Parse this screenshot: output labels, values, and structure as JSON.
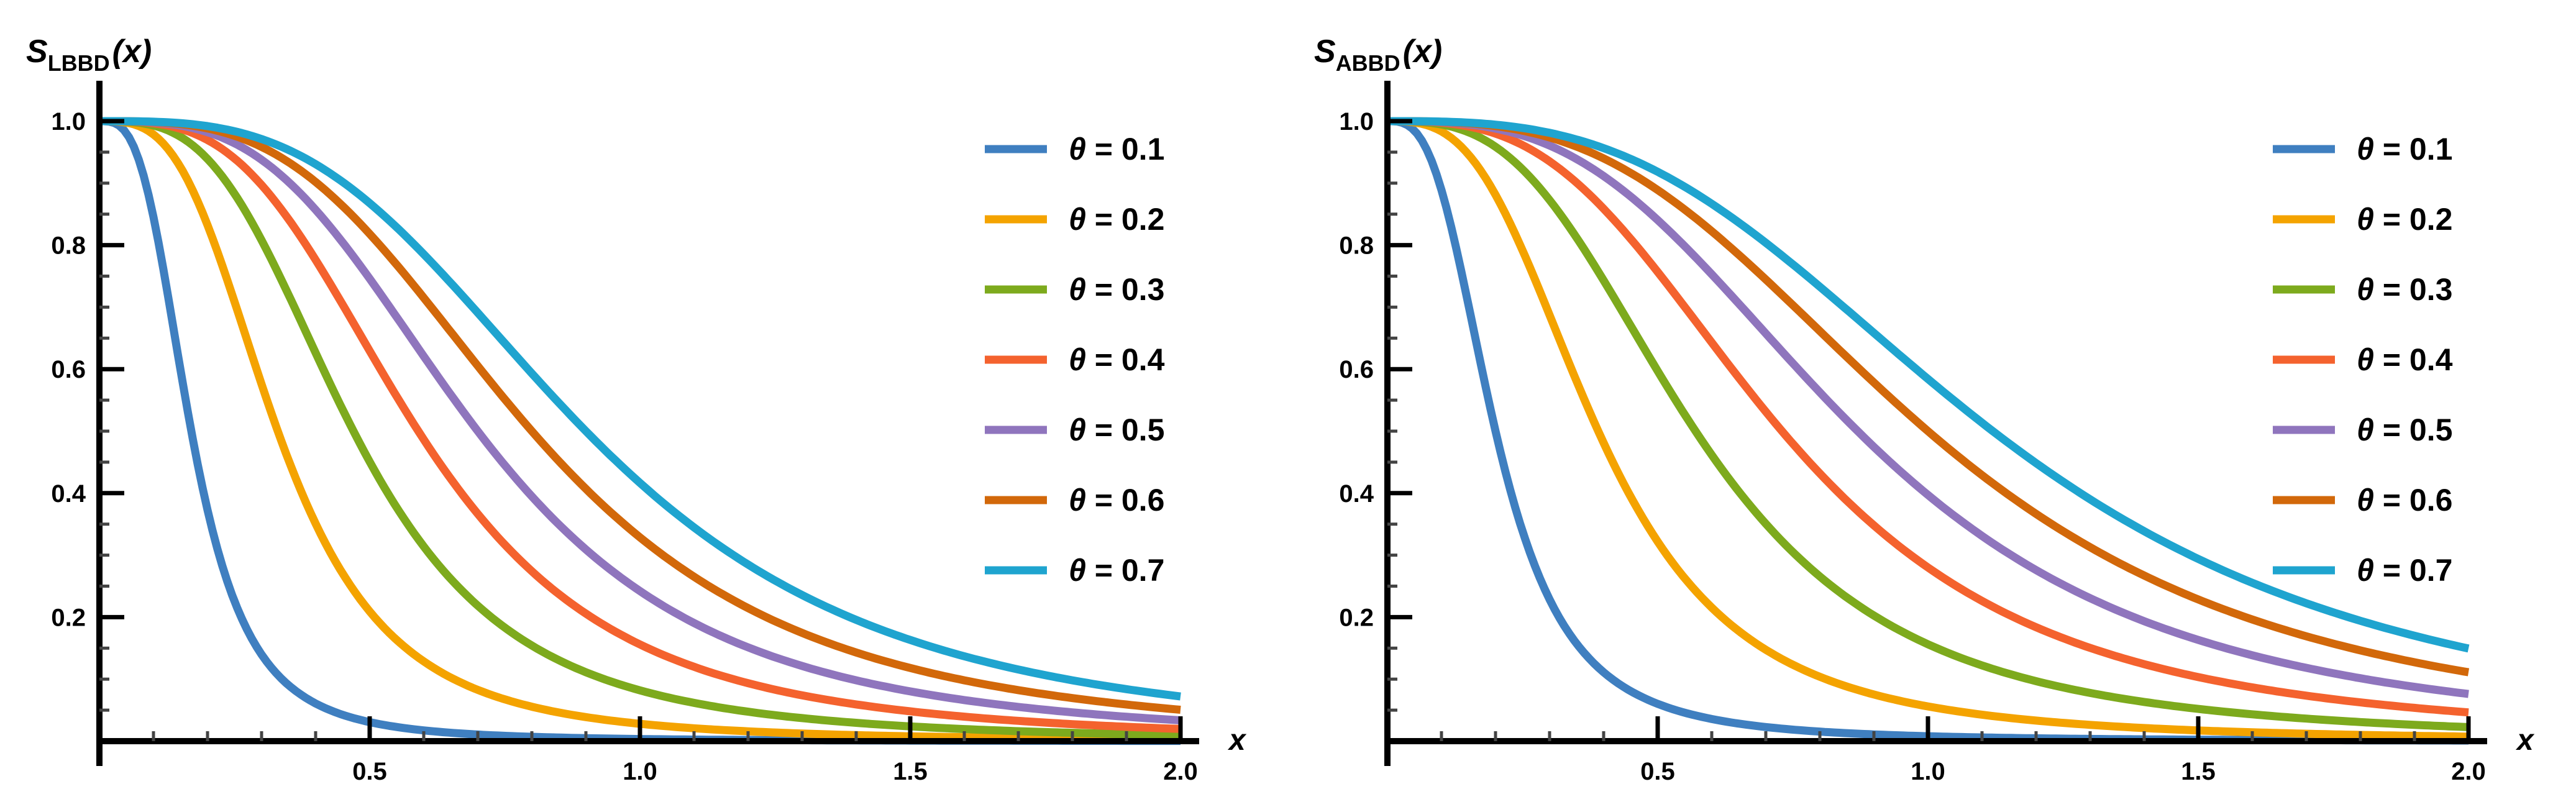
{
  "chart_data": [
    {
      "type": "line",
      "title": "",
      "ylabel_main": "S",
      "ylabel_sub": "LBBD",
      "ylabel_arg": "(x)",
      "xlabel": "x",
      "xlim": [
        0,
        2.0
      ],
      "ylim": [
        0,
        1.0
      ],
      "xticks": [
        0.5,
        1.0,
        1.5,
        2.0
      ],
      "xtick_labels": [
        "0.5",
        "1.0",
        "1.5",
        "2.0"
      ],
      "yticks": [
        0.2,
        0.4,
        0.6,
        0.8,
        1.0
      ],
      "ytick_labels": [
        "0.2",
        "0.4",
        "0.6",
        "0.8",
        "1.0"
      ],
      "legend_position": "top-right",
      "curve_shape": 3.2,
      "series": [
        {
          "name": "θ = 0.1",
          "theta_label": "θ",
          "value_label": " = 0.1",
          "color": "#3f7fc0",
          "scale": 0.17
        },
        {
          "name": "θ = 0.2",
          "theta_label": "θ",
          "value_label": " = 0.2",
          "color": "#f4a300",
          "scale": 0.33
        },
        {
          "name": "θ = 0.3",
          "theta_label": "θ",
          "value_label": " = 0.3",
          "color": "#7daa1d",
          "scale": 0.47
        },
        {
          "name": "θ = 0.4",
          "theta_label": "θ",
          "value_label": " = 0.4",
          "color": "#f4622e",
          "scale": 0.59
        },
        {
          "name": "θ = 0.5",
          "theta_label": "θ",
          "value_label": " = 0.5",
          "color": "#8f75bd",
          "scale": 0.7
        },
        {
          "name": "θ = 0.6",
          "theta_label": "θ",
          "value_label": " = 0.6",
          "color": "#d2680a",
          "scale": 0.8
        },
        {
          "name": "θ = 0.7",
          "theta_label": "θ",
          "value_label": " = 0.7",
          "color": "#1fa4cf",
          "scale": 0.9
        }
      ]
    },
    {
      "type": "line",
      "title": "",
      "ylabel_main": "S",
      "ylabel_sub": "ABBD",
      "ylabel_arg": "(x)",
      "xlabel": "x",
      "xlim": [
        0,
        2.0
      ],
      "ylim": [
        0,
        1.0
      ],
      "xticks": [
        0.5,
        1.0,
        1.5,
        2.0
      ],
      "xtick_labels": [
        "0.5",
        "1.0",
        "1.5",
        "2.0"
      ],
      "yticks": [
        0.2,
        0.4,
        0.6,
        0.8,
        1.0
      ],
      "ytick_labels": [
        "0.2",
        "0.4",
        "0.6",
        "0.8",
        "1.0"
      ],
      "legend_position": "top-right",
      "curve_shape": 3.0,
      "series": [
        {
          "name": "θ = 0.1",
          "theta_label": "θ",
          "value_label": " = 0.1",
          "color": "#3f7fc0",
          "scale": 0.2
        },
        {
          "name": "θ = 0.2",
          "theta_label": "θ",
          "value_label": " = 0.2",
          "color": "#f4a300",
          "scale": 0.39
        },
        {
          "name": "θ = 0.3",
          "theta_label": "θ",
          "value_label": " = 0.3",
          "color": "#7daa1d",
          "scale": 0.57
        },
        {
          "name": "θ = 0.4",
          "theta_label": "θ",
          "value_label": " = 0.4",
          "color": "#f4622e",
          "scale": 0.73
        },
        {
          "name": "θ = 0.5",
          "theta_label": "θ",
          "value_label": " = 0.5",
          "color": "#8f75bd",
          "scale": 0.87
        },
        {
          "name": "θ = 0.6",
          "theta_label": "θ",
          "value_label": " = 0.6",
          "color": "#d2680a",
          "scale": 1.0
        },
        {
          "name": "θ = 0.7",
          "theta_label": "θ",
          "value_label": " = 0.7",
          "color": "#1fa4cf",
          "scale": 1.12
        }
      ]
    }
  ]
}
